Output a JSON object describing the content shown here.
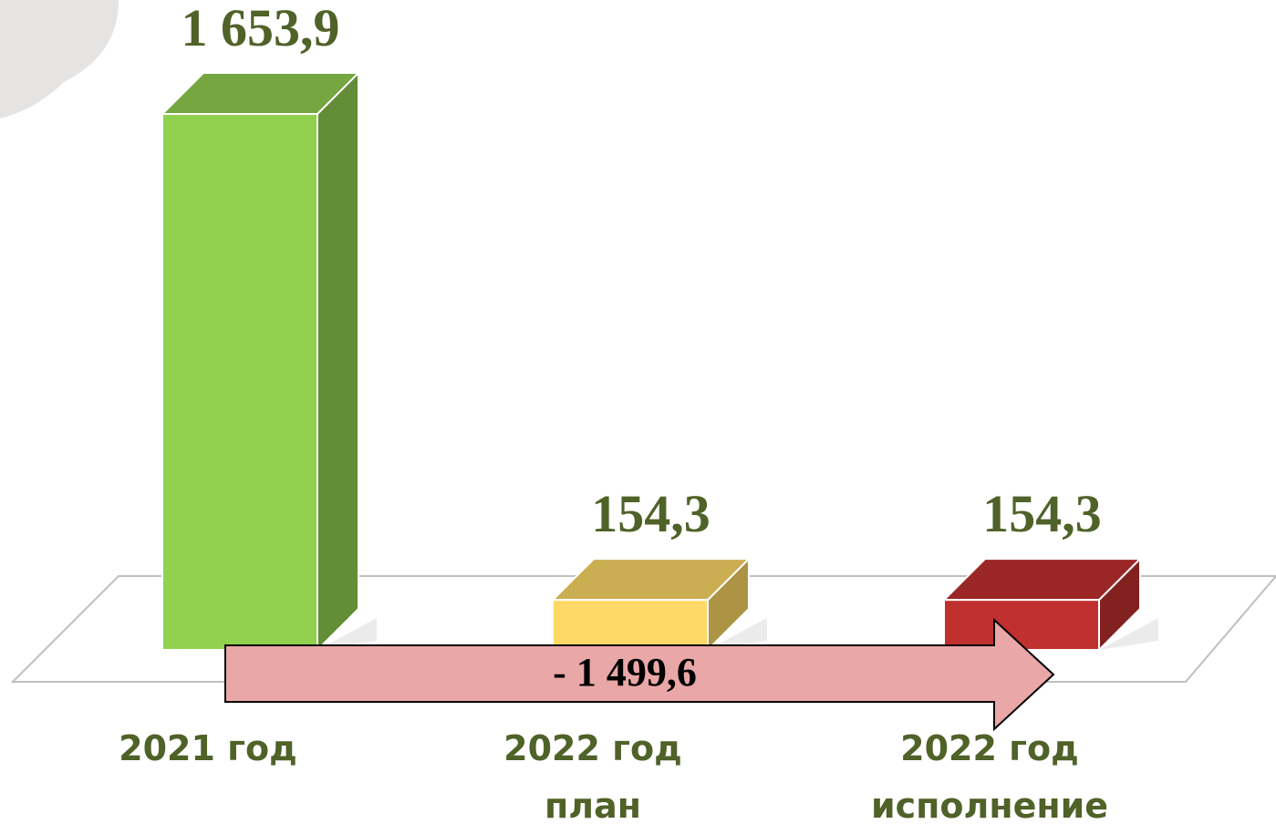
{
  "chart_data": {
    "type": "bar",
    "categories": [
      "2021 год",
      "2022 год\nплан",
      "2022 год\nисполнение"
    ],
    "values": [
      1653.9,
      154.3,
      154.3
    ],
    "value_labels": [
      "1 653,9",
      "154,3",
      "154,3"
    ],
    "colors": [
      "#92d050",
      "#ffd966",
      "#c0302f"
    ],
    "ylim": [
      0,
      1653.9
    ],
    "annotation": "- 1 499,6"
  }
}
